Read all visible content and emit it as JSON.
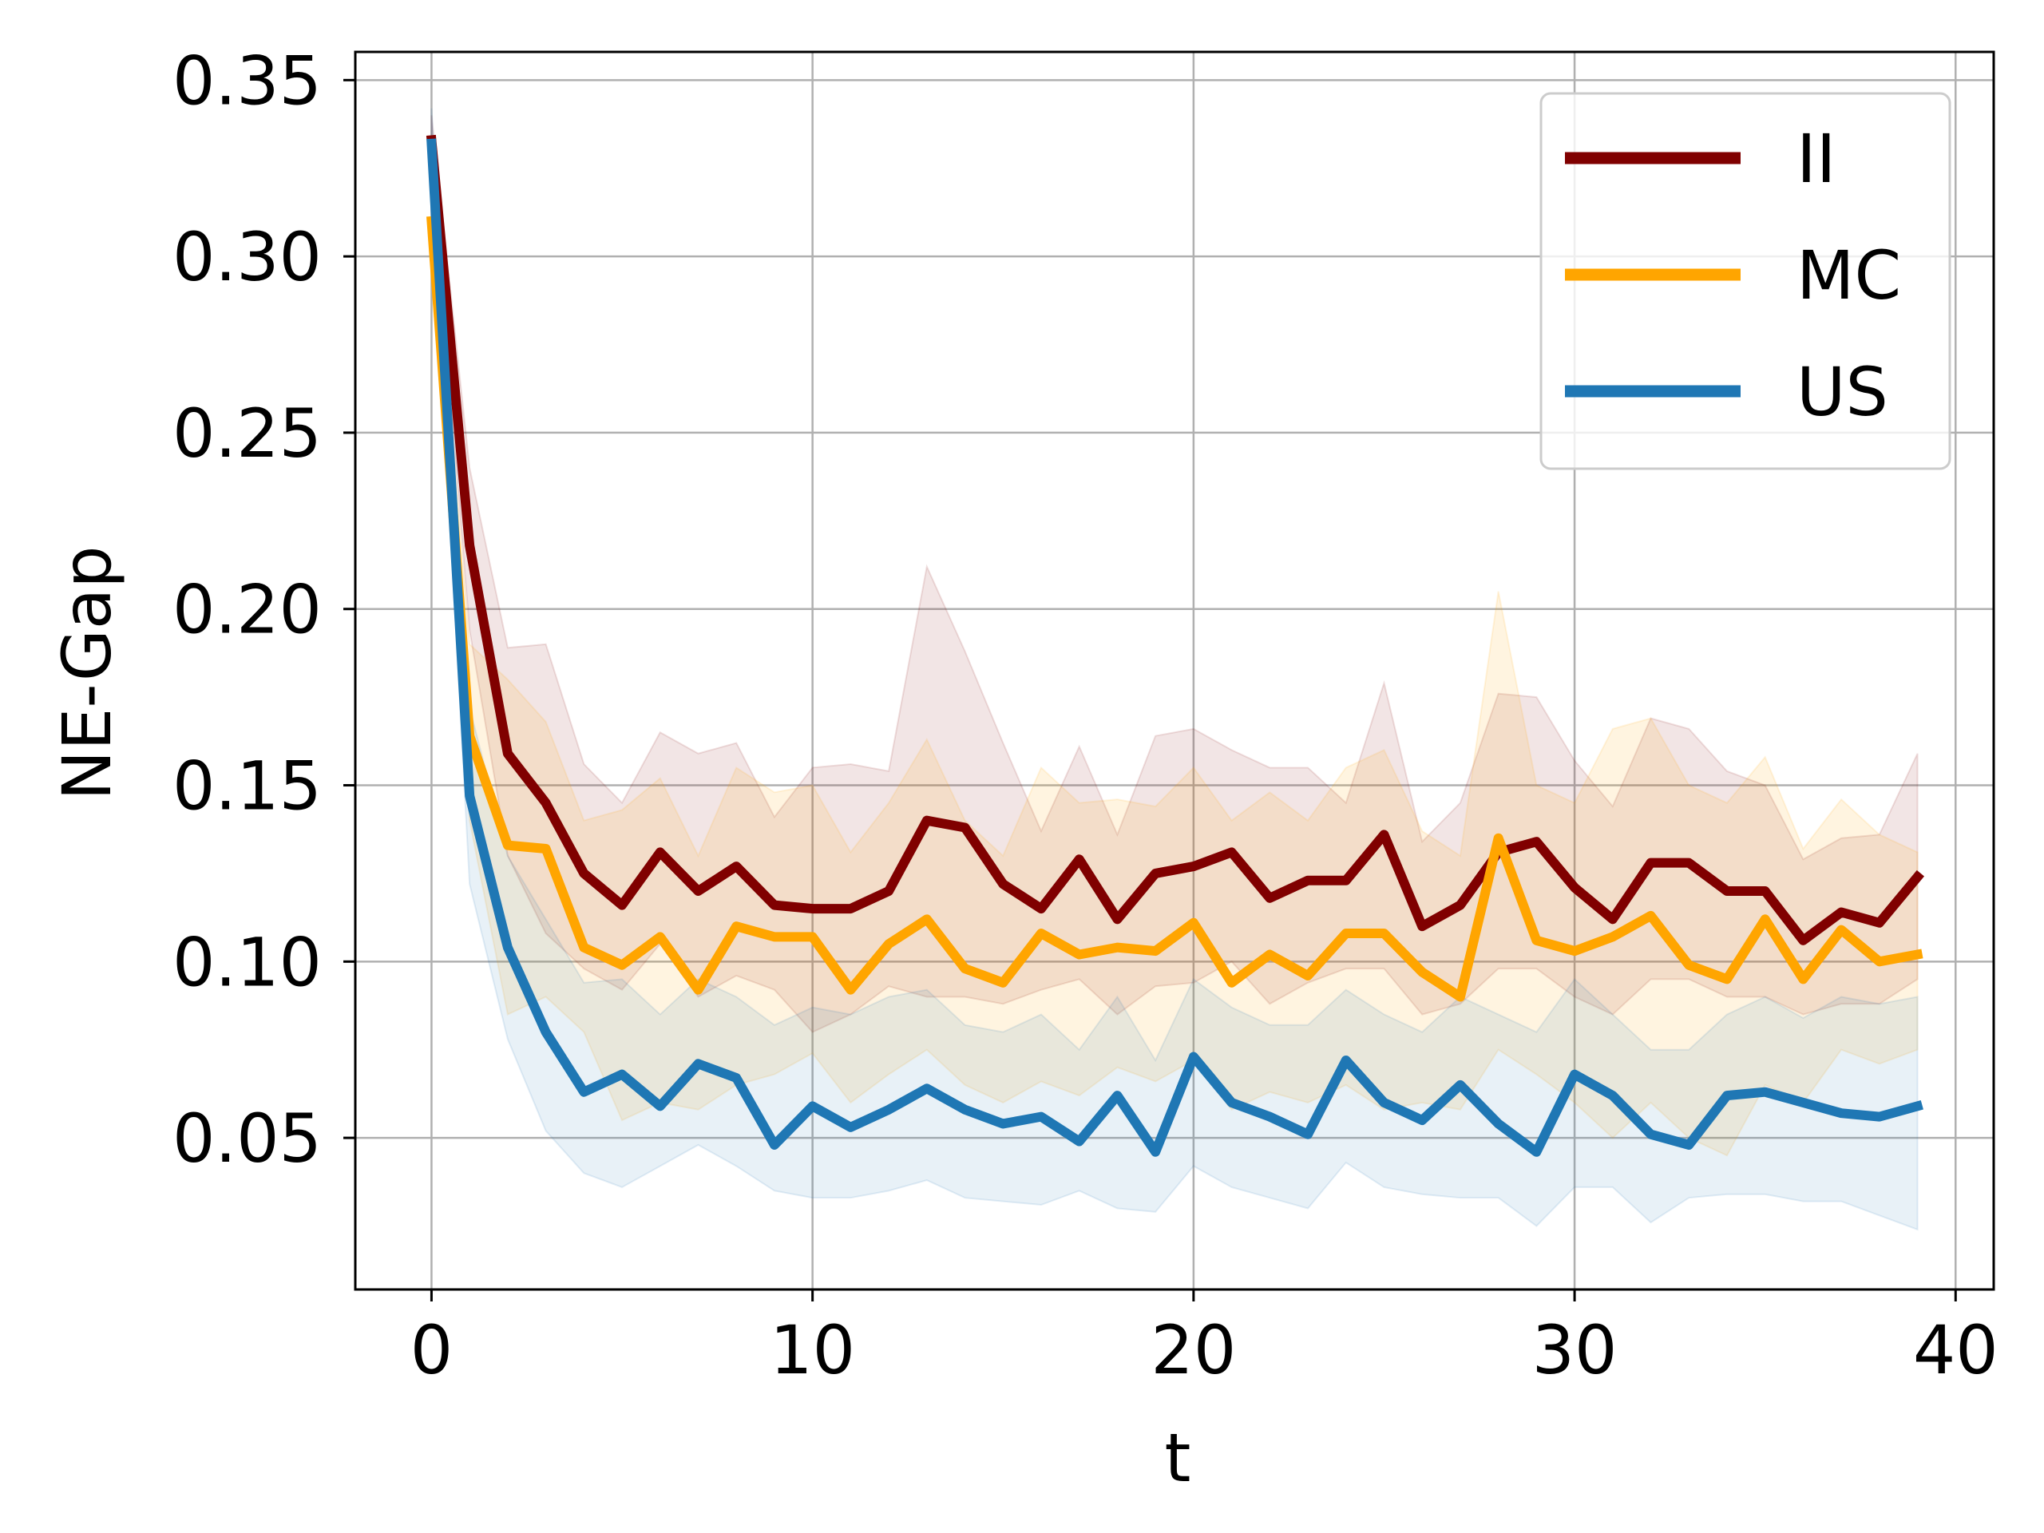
{
  "chart_data": {
    "type": "line",
    "title": "",
    "xlabel": "t",
    "ylabel": "NE-Gap",
    "xlim": [
      -2,
      41
    ],
    "ylim": [
      0.007,
      0.358
    ],
    "xticks": [
      0,
      10,
      20,
      30,
      40
    ],
    "xtick_labels": [
      "0",
      "10",
      "20",
      "30",
      "40"
    ],
    "yticks": [
      0.05,
      0.1,
      0.15,
      0.2,
      0.25,
      0.3,
      0.35
    ],
    "ytick_labels": [
      "0.05",
      "0.10",
      "0.15",
      "0.20",
      "0.25",
      "0.30",
      "0.35"
    ],
    "grid": true,
    "legend_position": "top-right",
    "x": [
      0,
      1,
      2,
      3,
      4,
      5,
      6,
      7,
      8,
      9,
      10,
      11,
      12,
      13,
      14,
      15,
      16,
      17,
      18,
      19,
      20,
      21,
      22,
      23,
      24,
      25,
      26,
      27,
      28,
      29,
      30,
      31,
      32,
      33,
      34,
      35,
      36,
      37,
      38,
      39
    ],
    "series": [
      {
        "name": "II",
        "color": "#800000",
        "band_opacity": 0.1,
        "values": [
          0.333,
          0.218,
          0.159,
          0.145,
          0.125,
          0.116,
          0.131,
          0.12,
          0.127,
          0.116,
          0.115,
          0.115,
          0.12,
          0.14,
          0.138,
          0.122,
          0.115,
          0.129,
          0.112,
          0.125,
          0.127,
          0.131,
          0.118,
          0.123,
          0.123,
          0.136,
          0.11,
          0.116,
          0.131,
          0.134,
          0.121,
          0.112,
          0.128,
          0.128,
          0.12,
          0.12,
          0.106,
          0.114,
          0.111,
          0.124
        ],
        "upper": [
          0.34,
          0.24,
          0.189,
          0.19,
          0.156,
          0.145,
          0.165,
          0.159,
          0.162,
          0.141,
          0.155,
          0.156,
          0.154,
          0.212,
          0.188,
          0.162,
          0.137,
          0.161,
          0.136,
          0.164,
          0.166,
          0.16,
          0.155,
          0.155,
          0.145,
          0.179,
          0.134,
          0.145,
          0.176,
          0.175,
          0.157,
          0.144,
          0.169,
          0.166,
          0.154,
          0.15,
          0.129,
          0.135,
          0.136,
          0.159
        ],
        "lower": [
          0.326,
          0.194,
          0.13,
          0.108,
          0.098,
          0.092,
          0.105,
          0.09,
          0.096,
          0.092,
          0.08,
          0.085,
          0.093,
          0.09,
          0.09,
          0.088,
          0.092,
          0.095,
          0.085,
          0.093,
          0.094,
          0.1,
          0.088,
          0.094,
          0.098,
          0.098,
          0.085,
          0.088,
          0.098,
          0.098,
          0.09,
          0.085,
          0.095,
          0.095,
          0.09,
          0.09,
          0.085,
          0.088,
          0.088,
          0.095
        ]
      },
      {
        "name": "MC",
        "color": "#FFA500",
        "band_opacity": 0.12,
        "values": [
          0.31,
          0.164,
          0.133,
          0.132,
          0.104,
          0.099,
          0.107,
          0.092,
          0.11,
          0.107,
          0.107,
          0.092,
          0.105,
          0.112,
          0.098,
          0.094,
          0.108,
          0.102,
          0.104,
          0.103,
          0.111,
          0.094,
          0.102,
          0.096,
          0.108,
          0.108,
          0.097,
          0.09,
          0.135,
          0.106,
          0.103,
          0.107,
          0.113,
          0.099,
          0.095,
          0.112,
          0.095,
          0.109,
          0.1,
          0.102
        ],
        "upper": [
          0.32,
          0.19,
          0.18,
          0.168,
          0.14,
          0.143,
          0.152,
          0.13,
          0.155,
          0.148,
          0.15,
          0.131,
          0.145,
          0.163,
          0.14,
          0.13,
          0.155,
          0.145,
          0.146,
          0.144,
          0.155,
          0.14,
          0.148,
          0.14,
          0.155,
          0.16,
          0.137,
          0.13,
          0.205,
          0.15,
          0.145,
          0.166,
          0.169,
          0.15,
          0.145,
          0.158,
          0.132,
          0.146,
          0.136,
          0.131
        ],
        "lower": [
          0.3,
          0.14,
          0.085,
          0.09,
          0.08,
          0.055,
          0.06,
          0.058,
          0.065,
          0.068,
          0.074,
          0.06,
          0.068,
          0.075,
          0.065,
          0.06,
          0.066,
          0.062,
          0.07,
          0.066,
          0.072,
          0.058,
          0.063,
          0.06,
          0.065,
          0.058,
          0.06,
          0.058,
          0.075,
          0.068,
          0.06,
          0.05,
          0.06,
          0.05,
          0.045,
          0.065,
          0.06,
          0.075,
          0.071,
          0.075
        ]
      },
      {
        "name": "US",
        "color": "#1f77b4",
        "band_opacity": 0.1,
        "values": [
          0.332,
          0.147,
          0.104,
          0.08,
          0.063,
          0.068,
          0.059,
          0.071,
          0.067,
          0.048,
          0.059,
          0.053,
          0.058,
          0.064,
          0.058,
          0.054,
          0.056,
          0.049,
          0.062,
          0.046,
          0.073,
          0.06,
          0.056,
          0.051,
          0.072,
          0.06,
          0.055,
          0.065,
          0.054,
          0.046,
          0.068,
          0.062,
          0.051,
          0.048,
          0.062,
          0.063,
          0.06,
          0.057,
          0.056,
          0.059
        ],
        "upper": [
          0.342,
          0.172,
          0.13,
          0.112,
          0.094,
          0.095,
          0.085,
          0.095,
          0.09,
          0.082,
          0.087,
          0.085,
          0.09,
          0.092,
          0.082,
          0.08,
          0.085,
          0.075,
          0.09,
          0.072,
          0.095,
          0.087,
          0.082,
          0.082,
          0.092,
          0.085,
          0.08,
          0.09,
          0.085,
          0.08,
          0.095,
          0.085,
          0.075,
          0.075,
          0.085,
          0.09,
          0.084,
          0.09,
          0.088,
          0.09
        ],
        "lower": [
          0.322,
          0.122,
          0.078,
          0.052,
          0.04,
          0.036,
          0.042,
          0.048,
          0.042,
          0.035,
          0.033,
          0.033,
          0.035,
          0.038,
          0.033,
          0.032,
          0.031,
          0.035,
          0.03,
          0.029,
          0.042,
          0.036,
          0.033,
          0.03,
          0.043,
          0.036,
          0.034,
          0.033,
          0.033,
          0.025,
          0.036,
          0.036,
          0.026,
          0.033,
          0.034,
          0.034,
          0.032,
          0.032,
          0.028,
          0.024
        ]
      }
    ]
  }
}
